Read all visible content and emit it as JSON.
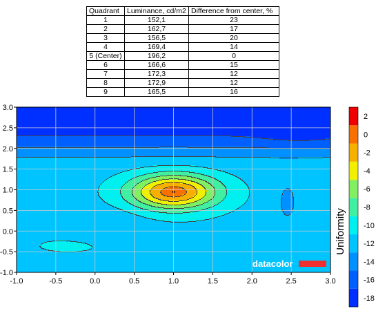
{
  "table": {
    "headers": [
      "Quadrant",
      "Luminance, cd/m2",
      "Difference from center, %"
    ],
    "rows": [
      [
        "1",
        "152,1",
        "23"
      ],
      [
        "2",
        "162,7",
        "17"
      ],
      [
        "3",
        "156,5",
        "20"
      ],
      [
        "4",
        "169,4",
        "14"
      ],
      [
        "5 (Center)",
        "196,2",
        "0"
      ],
      [
        "6",
        "166,6",
        "15"
      ],
      [
        "7",
        "172,3",
        "12"
      ],
      [
        "8",
        "172,9",
        "12"
      ],
      [
        "9",
        "165,5",
        "16"
      ]
    ]
  },
  "chart_data": {
    "type": "heatmap",
    "subtype": "filled-contour",
    "xlim": [
      -1.0,
      3.0
    ],
    "ylim": [
      -1.0,
      3.0
    ],
    "x_ticks": [
      "-1.0",
      "-0.5",
      "0.0",
      "0.5",
      "1.0",
      "1.5",
      "2.0",
      "2.5",
      "3.0"
    ],
    "y_ticks": [
      "-1.0",
      "-0.5",
      "0.0",
      "0.5",
      "1.0",
      "1.5",
      "2.0",
      "2.5",
      "3.0"
    ],
    "grid": true,
    "peak": {
      "x": 1.0,
      "y": 0.95,
      "value": 0
    },
    "colorbar": {
      "label": "Uniformity",
      "ticks": [
        "2",
        "0",
        "-2",
        "-4",
        "-6",
        "-8",
        "-10",
        "-12",
        "-14",
        "-16",
        "-18"
      ],
      "range": [
        -19,
        3
      ],
      "levels": [
        -19,
        -17,
        -15,
        -13,
        -11,
        -9,
        -7,
        -5,
        -3,
        -1,
        1,
        3
      ],
      "colors": [
        "#0030ff",
        "#0060ff",
        "#0090ff",
        "#00c4ff",
        "#00f0f0",
        "#40f0a0",
        "#80f060",
        "#f0f000",
        "#f8b000",
        "#f87000",
        "#f00000"
      ]
    },
    "watermark": "datacolor"
  },
  "colors": {
    "watermark_bar": "#f03030",
    "grid": "#cccccc"
  }
}
